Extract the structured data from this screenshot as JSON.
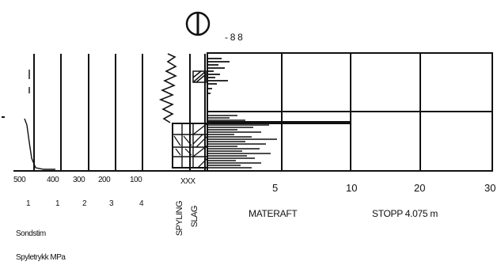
{
  "header": {
    "elevation_label": "- 8 8"
  },
  "left_scale": {
    "depth_ticks": [
      "500",
      "400",
      "300",
      "200",
      "100"
    ],
    "lower_ticks": [
      "1",
      "1",
      "2",
      "3",
      "4"
    ],
    "xxx_label": "XXX"
  },
  "vertical_labels": {
    "spyling": "SPYLING",
    "slag": "SLAG"
  },
  "right_scale": {
    "ticks": [
      "5",
      "10",
      "20",
      "30"
    ],
    "materaft_label": "MATERAFT",
    "stopp_label": "STOPP 4.075 m"
  },
  "legend": {
    "item1": "Sondstim",
    "item2": "Spyletrykk MPa"
  },
  "colors": {
    "ink": "#111111",
    "background": "#ffffff"
  }
}
